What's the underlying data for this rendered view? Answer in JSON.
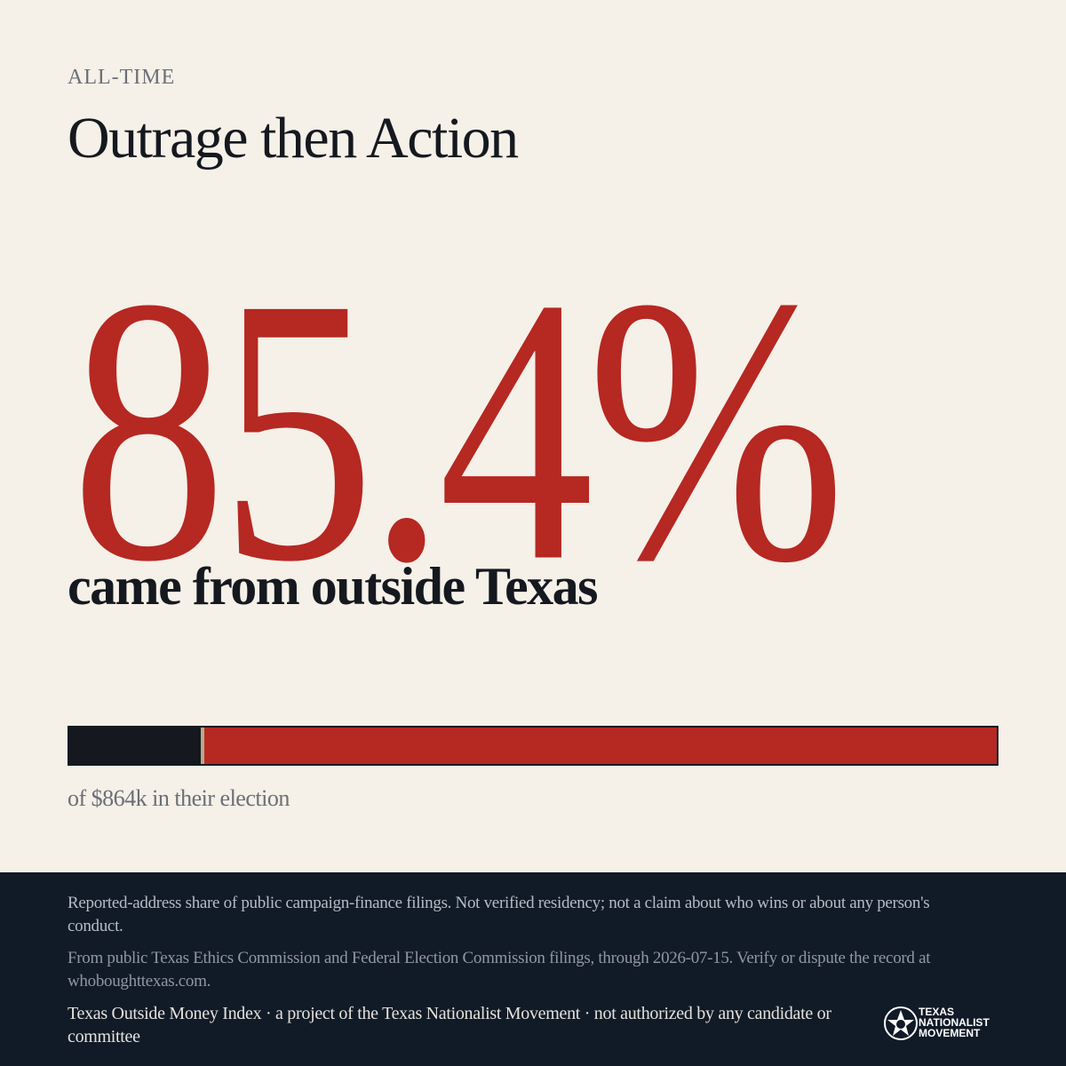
{
  "eyebrow": "ALL-TIME",
  "title": "Outrage then Action",
  "stat": {
    "value": 85.4,
    "label": "85.4%"
  },
  "stat_caption": "came from outside Texas",
  "bar_caption": "of $864k in their election",
  "footer": {
    "disclaimer": "Reported-address share of public campaign-finance filings. Not verified residency; not a claim about who wins or about any person's conduct.",
    "source": "From public Texas Ethics Commission and Federal Election Commission filings, through 2026-07-15. Verify or dispute the record at whoboughttexas.com.",
    "credit": "Texas Outside Money Index · a project of the Texas Nationalist Movement · not authorized by any candidate or committee",
    "logo": [
      "TEXAS",
      "NATIONALIST",
      "MOVEMENT"
    ]
  }
}
